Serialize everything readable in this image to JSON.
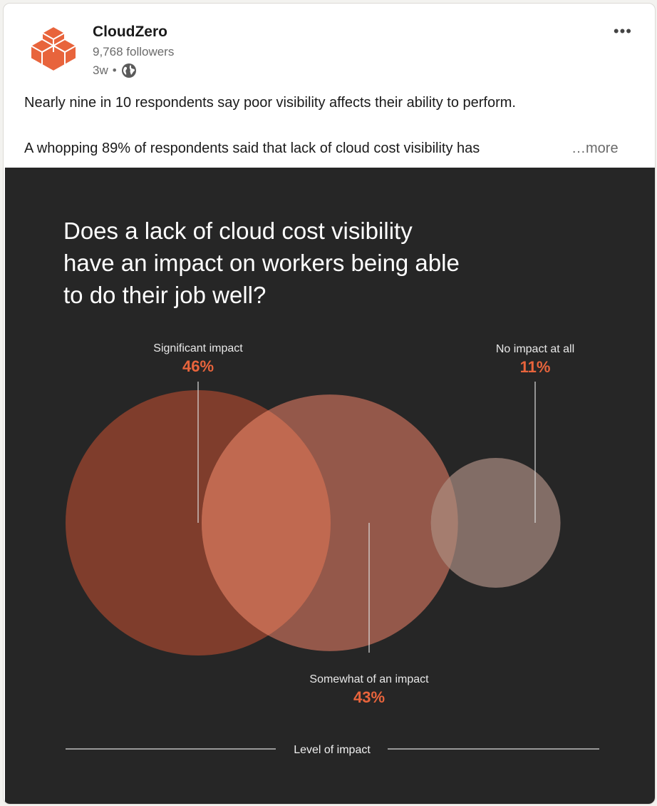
{
  "post": {
    "company_name": "CloudZero",
    "followers": "9,768 followers",
    "time_ago": "3w",
    "separator": "•",
    "menu_icon": "more-horizontal-icon",
    "text_line1": "Nearly nine in 10 respondents say poor visibility affects their ability to perform.",
    "text_line2": "A whopping 89% of respondents said that lack of cloud cost visibility has",
    "more_label": "…more",
    "brand_color": "#e8643c"
  },
  "chart_data": {
    "type": "bubble",
    "title": "Does a lack of cloud cost visibility have an impact on workers being able to do their job well?",
    "title_lines": [
      "Does a lack of cloud cost visibility",
      "have an impact on workers being able",
      "to do their job well?"
    ],
    "xlabel": "Level of impact",
    "categories": [
      "Significant impact",
      "Somewhat of an impact",
      "No impact at all"
    ],
    "values": [
      46,
      43,
      11
    ],
    "value_labels": [
      "46%",
      "43%",
      "11%"
    ],
    "colors": [
      "#8c412d",
      "#a46050",
      "#8f7770"
    ],
    "accent_color": "#e8643c"
  }
}
